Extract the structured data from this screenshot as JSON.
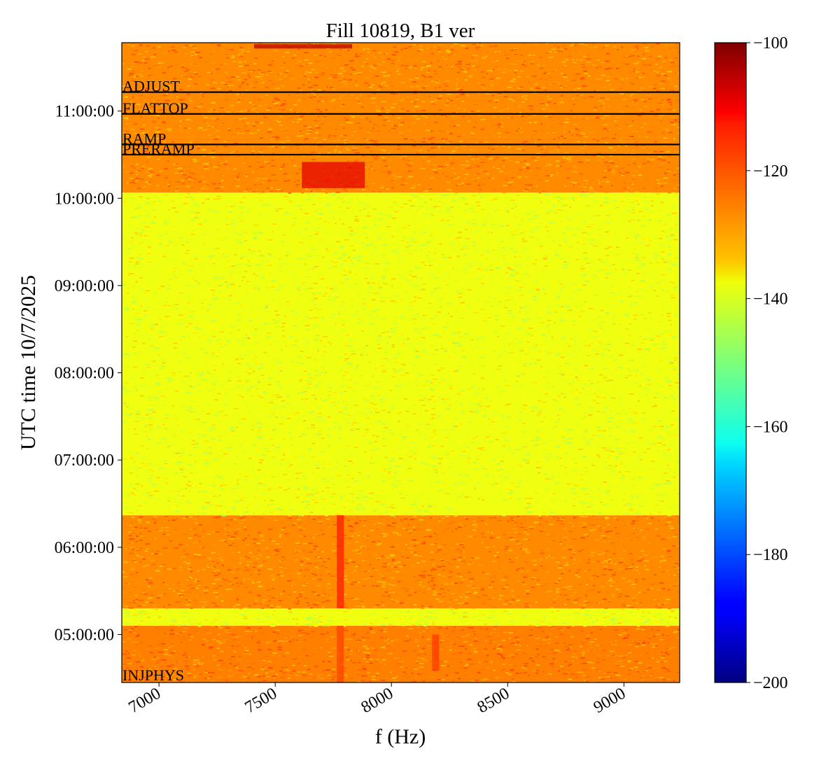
{
  "chart_data": {
    "type": "heatmap",
    "title": "Fill 10819, B1 ver",
    "xlabel": "f (Hz)",
    "ylabel": "UTC time 10/7/2025",
    "xlim": [
      6840,
      9240
    ],
    "ylim": [
      "04:27:00",
      "11:47:00"
    ],
    "x_ticks": [
      7000,
      7500,
      8000,
      8500,
      9000
    ],
    "x_tick_labels": [
      "7000",
      "7500",
      "8000",
      "8500",
      "9000"
    ],
    "y_ticks": [
      "05:00:00",
      "06:00:00",
      "07:00:00",
      "08:00:00",
      "09:00:00",
      "10:00:00",
      "11:00:00"
    ],
    "y_tick_labels": [
      "05:00:00",
      "06:00:00",
      "07:00:00",
      "08:00:00",
      "09:00:00",
      "10:00:00",
      "11:00:00"
    ],
    "colormap": "jet",
    "colorbar": {
      "vmin": -200,
      "vmax": -100,
      "ticks": [
        -100,
        -120,
        -140,
        -160,
        -180,
        -200
      ],
      "tick_labels": [
        "−100",
        "−120",
        "−140",
        "−160",
        "−180",
        "−200"
      ]
    },
    "time_bands": [
      {
        "start": "04:27:00",
        "end": "05:06:00",
        "level_db": -125
      },
      {
        "start": "05:06:00",
        "end": "05:18:00",
        "level_db": -139
      },
      {
        "start": "05:18:00",
        "end": "06:22:00",
        "level_db": -126
      },
      {
        "start": "06:22:00",
        "end": "10:04:00",
        "level_db": -139
      },
      {
        "start": "10:04:00",
        "end": "11:47:00",
        "level_db": -126
      }
    ],
    "features": [
      {
        "f": 7780,
        "start": "05:18:00",
        "end": "06:22:00",
        "level_db": -115
      },
      {
        "f": 7780,
        "start": "04:27:00",
        "end": "05:06:00",
        "level_db": -119
      },
      {
        "f": 8190,
        "start": "04:35:00",
        "end": "05:00:00",
        "level_db": -118
      },
      {
        "f": 7750,
        "start": "10:07:00",
        "end": "10:25:00",
        "level_db": -110
      },
      {
        "f": 7620,
        "start": "11:43:00",
        "end": "11:46:00",
        "level_db": -106
      }
    ],
    "annotations": [
      {
        "label": "ADJUST",
        "time": "11:13:00"
      },
      {
        "label": "FLATTOP",
        "time": "10:58:00"
      },
      {
        "label": "RAMP",
        "time": "10:37:00"
      },
      {
        "label": "PRERAMP",
        "time": "10:30:00"
      },
      {
        "label": "INJPHYS",
        "time": "04:28:00"
      }
    ]
  }
}
